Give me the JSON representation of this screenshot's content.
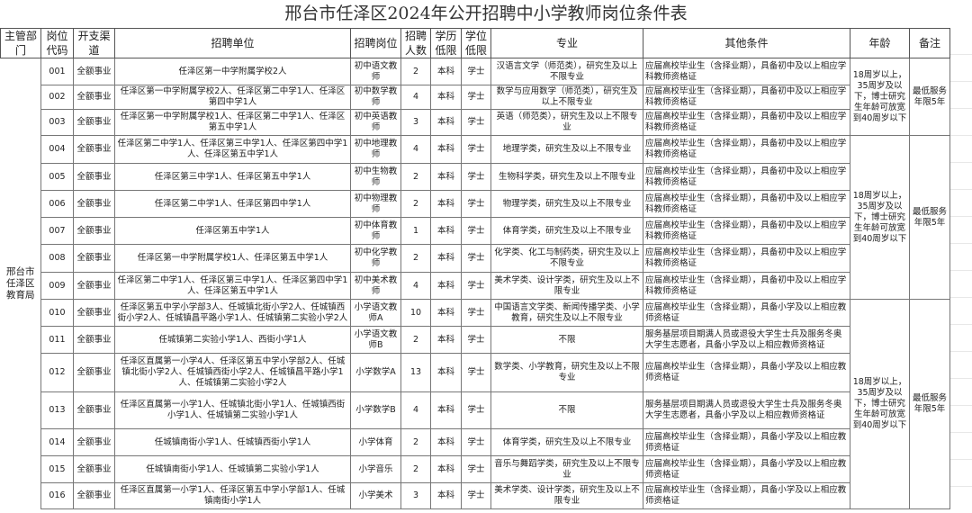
{
  "title": "邢台市任泽区2024年公开招聘中小学教师岗位条件表",
  "headers": [
    "主管部门",
    "岗位代码",
    "开支渠道",
    "招聘单位",
    "招聘岗位",
    "招聘人数",
    "学历低限",
    "学位低限",
    "专业",
    "其他条件",
    "年龄",
    "备注"
  ],
  "department": "邢台市任泽区教育局",
  "groups": [
    {
      "age": "18周岁以上，35周岁及以下，博士研究生年龄可放宽到40周岁以下",
      "note": "最低服务年限5年"
    },
    {
      "age": "18周岁以上，35周岁及以下，博士研究生年龄可放宽到40周岁以下",
      "note": "最低服务年限5年"
    },
    {
      "age": "18周岁以上，35周岁及以下，博士研究生年龄可放宽到40周岁以下",
      "note": "最低服务年限5年"
    }
  ],
  "rows": [
    {
      "code": "001",
      "channel": "全额事业",
      "units": "任泽区第一中学附属学校2人",
      "position": "初中语文教师",
      "count": "2",
      "education": "本科",
      "degree": "学士",
      "major": "汉语言文学（师范类），研究生及以上不限专业",
      "other": "应届高校毕业生（含择业期），具备初中及以上相应学科教师资格证"
    },
    {
      "code": "002",
      "channel": "全额事业",
      "units": "任泽区第一中学附属学校2人、任泽区第二中学1人、任泽区第四中学1人",
      "position": "初中数学教师",
      "count": "4",
      "education": "本科",
      "degree": "学士",
      "major": "数学与应用数学（师范类），研究生及以上不限专业",
      "other": "应届高校毕业生（含择业期），具备初中及以上相应学科教师资格证"
    },
    {
      "code": "003",
      "channel": "全额事业",
      "units": "任泽区第一中学附属学校1人、任泽区第二中学1人、任泽区第五中学1人",
      "position": "初中英语教师",
      "count": "3",
      "education": "本科",
      "degree": "学士",
      "major": "英语（师范类），研究生及以上不限专业",
      "other": "应届高校毕业生（含择业期），具备初中及以上相应学科教师资格证"
    },
    {
      "code": "004",
      "channel": "全额事业",
      "units": "任泽区第二中学1人、任泽区第三中学1人、任泽区第四中学1人、任泽区第五中学1人",
      "position": "初中地理教师",
      "count": "4",
      "education": "本科",
      "degree": "学士",
      "major": "地理学类，研究生及以上不限专业",
      "other": "应届高校毕业生（含择业期），具备初中及以上相应学科教师资格证"
    },
    {
      "code": "005",
      "channel": "全额事业",
      "units": "任泽区第三中学1人、任泽区第五中学1人",
      "position": "初中生物教师",
      "count": "2",
      "education": "本科",
      "degree": "学士",
      "major": "生物科学类，研究生及以上不限专业",
      "other": "应届高校毕业生（含择业期），具备初中及以上相应学科教师资格证"
    },
    {
      "code": "006",
      "channel": "全额事业",
      "units": "任泽区第二中学1人、任泽区第四中学1人",
      "position": "初中物理教师",
      "count": "2",
      "education": "本科",
      "degree": "学士",
      "major": "物理学类，研究生及以上不限专业",
      "other": "应届高校毕业生（含择业期），具备初中及以上相应学科教师资格证"
    },
    {
      "code": "007",
      "channel": "全额事业",
      "units": "任泽区第五中学1人",
      "position": "初中体育教师",
      "count": "1",
      "education": "本科",
      "degree": "学士",
      "major": "体育学类，研究生及以上不限专业",
      "other": "应届高校毕业生（含择业期），具备初中及以上相应学科教师资格证"
    },
    {
      "code": "008",
      "channel": "全额事业",
      "units": "任泽区第一中学附属学校1人、任泽区第五中学1人",
      "position": "初中化学教师",
      "count": "2",
      "education": "本科",
      "degree": "学士",
      "major": "化学类、化工与制药类，研究生及以上不限专业",
      "other": "应届高校毕业生（含择业期），具备初中及以上相应学科教师资格证"
    },
    {
      "code": "009",
      "channel": "全额事业",
      "units": "任泽区第二中学1人、任泽区第三中学1人、任泽区第四中学1人、任泽区第五中学1人",
      "position": "初中美术教师",
      "count": "4",
      "education": "本科",
      "degree": "学士",
      "major": "美术学类、设计学类，研究生及以上不限专业",
      "other": "应届高校毕业生（含择业期），具备初中及以上相应学科教师资格证"
    },
    {
      "code": "010",
      "channel": "全额事业",
      "units": "任泽区第五中学小学部3人、任城镇北街小学2人、任城镇西街小学2人、任城镇昌平路小学1人、任城镇第二实验小学2人",
      "position": "小学语文教师A",
      "count": "10",
      "education": "本科",
      "degree": "学士",
      "major": "中国语言文学类、新闻传播学类、小学教育，研究生及以上不限专业",
      "other": "应届高校毕业生（含择业期），具备小学及以上相应教师资格证"
    },
    {
      "code": "011",
      "channel": "全额事业",
      "units": "任城镇第二实验小学1人、西街小学1人",
      "position": "小学语文教师B",
      "count": "2",
      "education": "本科",
      "degree": "学士",
      "major": "不限",
      "other": "服务基层项目期满人员或退役大学生士兵及服务冬奥大学生志愿者，具备小学及以上相应教师资格证"
    },
    {
      "code": "012",
      "channel": "全额事业",
      "units": "任泽区直属第一小学4人、任泽区第五中学小学部2人、任城镇北街小学2人、任城镇西街小学2人、任城镇昌平路小学1人、任城镇第二实验小学2人",
      "position": "小学数学A",
      "count": "13",
      "education": "本科",
      "degree": "学士",
      "major": "数学类、小学教育，研究生及以上不限专业",
      "other": "应届高校毕业生（含择业期），具备小学及以上相应教师资格证"
    },
    {
      "code": "013",
      "channel": "全额事业",
      "units": "任泽区直属第一小学1人、任城镇北街小学1人、任城镇西街小学1人、任城镇第二实验小学1人",
      "position": "小学数学B",
      "count": "4",
      "education": "本科",
      "degree": "学士",
      "major": "不限",
      "other": "服务基层项目期满人员或退役大学生士兵及服务冬奥大学生志愿者，具备小学及以上相应教师资格证"
    },
    {
      "code": "014",
      "channel": "全额事业",
      "units": "任城镇南街小学1人、任城镇西街小学1人",
      "position": "小学体育",
      "count": "2",
      "education": "本科",
      "degree": "学士",
      "major": "体育学类，研究生及以上不限专业",
      "other": "应届高校毕业生（含择业期），具备小学及以上相应教师资格证"
    },
    {
      "code": "015",
      "channel": "全额事业",
      "units": "任城镇南街小学1人、任城镇第二实验小学1人",
      "position": "小学音乐",
      "count": "2",
      "education": "本科",
      "degree": "学士",
      "major": "音乐与舞蹈学类，研究生及以上不限专业",
      "other": "应届高校毕业生（含择业期），具备小学及以上相应教师资格证"
    },
    {
      "code": "016",
      "channel": "全额事业",
      "units": "任泽区直属第一小学1人、任泽区第五中学小学部1人、任城镇南街小学1人",
      "position": "小学美术",
      "count": "3",
      "education": "本科",
      "degree": "学士",
      "major": "美术学类、设计学类，研究生及以上不限专业",
      "other": "应届高校毕业生（含择业期），具备小学及以上相应教师资格证"
    }
  ]
}
